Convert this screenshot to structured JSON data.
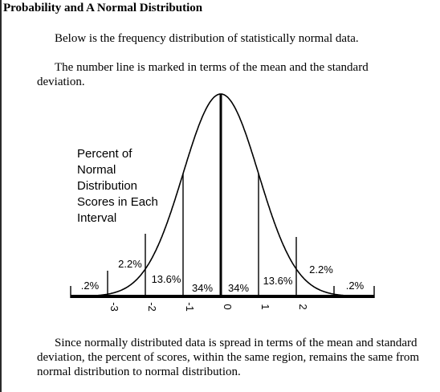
{
  "title": "Probability and A Normal Distribution",
  "paragraphs": {
    "intro": "Below is the frequency distribution of statistically normal data.",
    "number_line": "The number line is marked in terms of the mean and the standard deviation.",
    "conclusion": "Since normally distributed data is spread in terms of the mean and standard deviation, the percent of scores, within the same region, remains the same from normal distribution to normal distribution."
  },
  "chart_data": {
    "type": "area",
    "title": "Percent of Normal Distribution Scores in Each Interval",
    "title_lines": [
      "Percent of",
      "Normal",
      "Distribution",
      "Scores in Each",
      "Interval"
    ],
    "xlabel": "",
    "ylabel": "",
    "xlim": [
      -3.6,
      3.6
    ],
    "ticks": [
      "-3",
      "-2",
      "-1",
      "0",
      "1",
      "2"
    ],
    "interval_labels": [
      {
        "interval": [
          -4,
          -3
        ],
        "label": ".2%"
      },
      {
        "interval": [
          -3,
          -2
        ],
        "label": "2.2%"
      },
      {
        "interval": [
          -2,
          -1
        ],
        "label": "13.6%"
      },
      {
        "interval": [
          -1,
          0
        ],
        "label": "34%"
      },
      {
        "interval": [
          0,
          1
        ],
        "label": "34%"
      },
      {
        "interval": [
          1,
          2
        ],
        "label": "13.6%"
      },
      {
        "interval": [
          2,
          3
        ],
        "label": "2.2%"
      },
      {
        "interval": [
          3,
          4
        ],
        "label": ".2%"
      }
    ],
    "curve": "standard normal density"
  }
}
